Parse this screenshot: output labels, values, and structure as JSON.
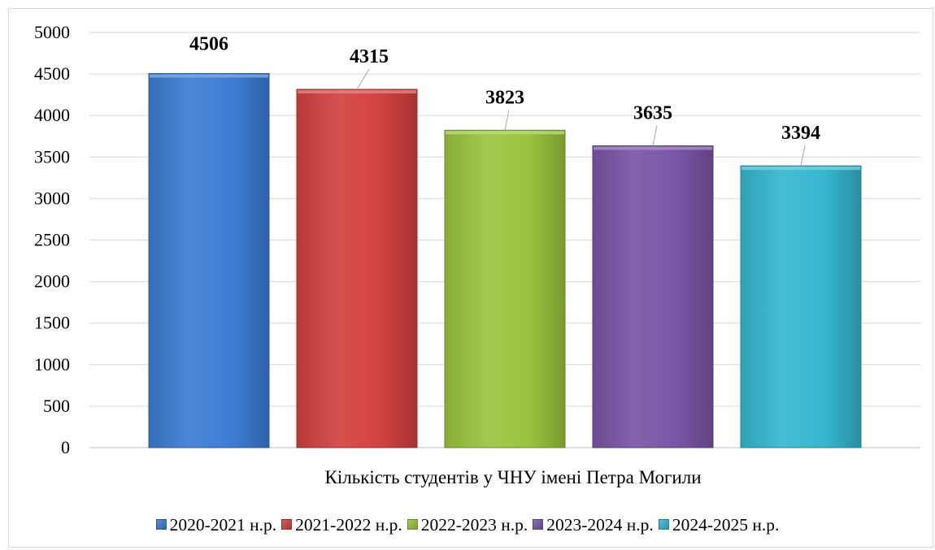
{
  "chart_data": {
    "type": "bar",
    "xlabel": "Кількість студентів у ЧНУ імені Петра Могили",
    "ylim": [
      0,
      5000
    ],
    "yticks": [
      0,
      500,
      1000,
      1500,
      2000,
      2500,
      3000,
      3500,
      4000,
      4500,
      5000
    ],
    "grid": true,
    "legend_position": "bottom",
    "series": [
      {
        "name": "2020-2021 н.р.",
        "values": [
          4506
        ],
        "color": "#3c7dd2"
      },
      {
        "name": "2021-2022 н.р.",
        "values": [
          4315
        ],
        "color": "#d24240"
      },
      {
        "name": "2022-2023 н.р.",
        "values": [
          3823
        ],
        "color": "#9ac43f"
      },
      {
        "name": "2023-2024 н.р.",
        "values": [
          3635
        ],
        "color": "#7b55a6"
      },
      {
        "name": "2024-2025 н.р.",
        "values": [
          3394
        ],
        "color": "#35b7cf"
      }
    ]
  }
}
